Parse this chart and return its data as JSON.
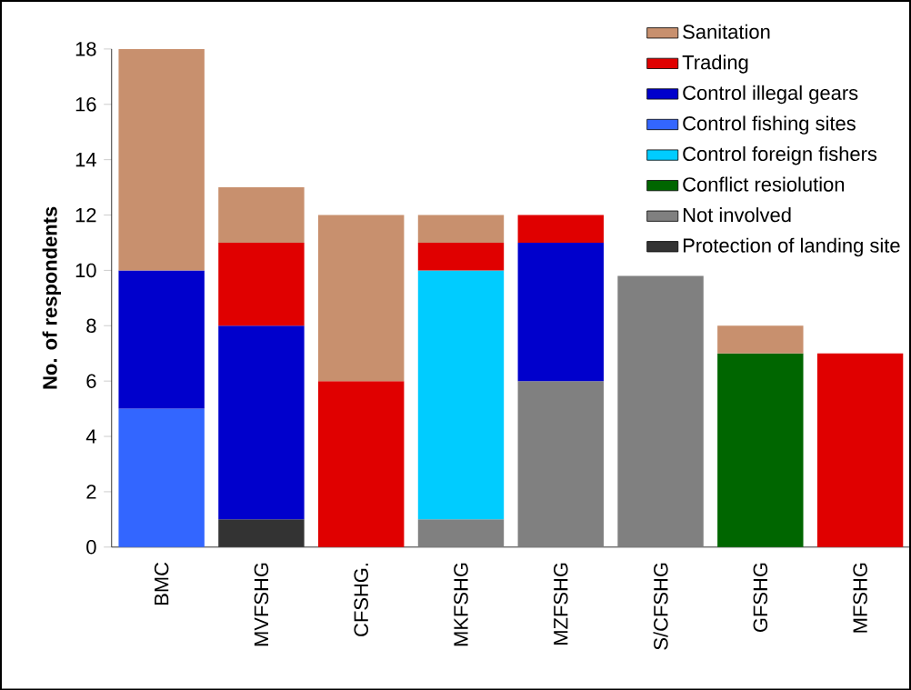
{
  "chart_data": {
    "type": "bar",
    "stacked": true,
    "ylabel": "No. of respondents",
    "categories": [
      "BMC",
      "MVFSHG",
      "CFSHG.",
      "MKFSHG",
      "MZFSHG",
      "S/CFSHG",
      "GFSHG",
      "MFSHG"
    ],
    "ylim": [
      0,
      18
    ],
    "yticks": [
      0,
      2,
      4,
      6,
      8,
      10,
      12,
      14,
      16,
      18
    ],
    "legend": "top right",
    "series": [
      {
        "name": "Protection of landing site",
        "color": "#333333",
        "values": [
          null,
          1,
          null,
          null,
          null,
          null,
          null,
          null
        ]
      },
      {
        "name": "Not involved",
        "color": "#808080",
        "values": [
          null,
          null,
          null,
          1,
          6,
          9.8,
          null,
          null
        ]
      },
      {
        "name": "Conflict resiolution",
        "color": "#006600",
        "values": [
          null,
          null,
          null,
          null,
          null,
          null,
          7,
          null
        ]
      },
      {
        "name": "Control foreign fishers",
        "color": "#00ccff",
        "values": [
          null,
          null,
          null,
          9,
          null,
          null,
          null,
          null
        ]
      },
      {
        "name": "Control fishing sites",
        "color": "#3366ff",
        "values": [
          5,
          null,
          null,
          null,
          null,
          null,
          null,
          null
        ]
      },
      {
        "name": "Control illegal gears",
        "color": "#0000cc",
        "values": [
          5,
          7,
          null,
          null,
          5,
          null,
          null,
          null
        ]
      },
      {
        "name": "Trading",
        "color": "#e00000",
        "values": [
          null,
          3,
          6,
          1,
          1,
          null,
          null,
          7
        ]
      },
      {
        "name": "Sanitation",
        "color": "#c8906e",
        "values": [
          8,
          2,
          6,
          1,
          null,
          null,
          1,
          null
        ]
      }
    ]
  }
}
